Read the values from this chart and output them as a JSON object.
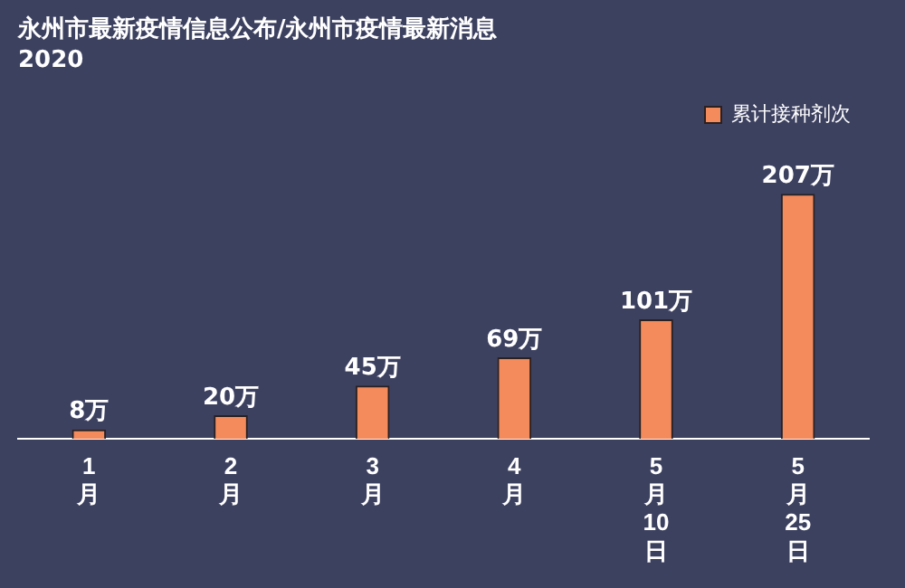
{
  "chart_data": {
    "type": "bar",
    "title": "永州市最新疫情信息公布/永州市疫情最新消息2020",
    "categories": [
      "1\n月",
      "2\n月",
      "3\n月",
      "4\n月",
      "5\n月\n10\n日",
      "5\n月\n25\n日"
    ],
    "series": [
      {
        "name": "累计接种剂次",
        "color": "#f48b5c",
        "values": [
          8,
          20,
          45,
          69,
          101,
          207
        ],
        "value_labels": [
          "8万",
          "20万",
          "45万",
          "69万",
          "101万",
          "207万"
        ]
      }
    ],
    "legend": "top right",
    "grid": false
  }
}
